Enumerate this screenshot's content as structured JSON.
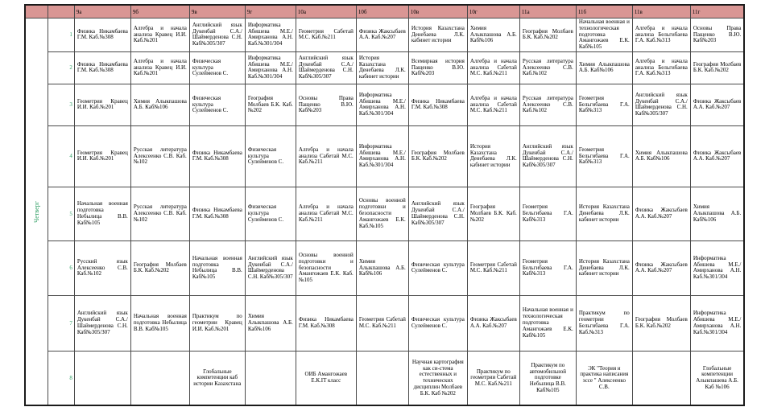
{
  "colors": {
    "header_bg": "#d99694",
    "accent_green": "#2f9e64",
    "border": "#4a4a4a",
    "background": "#ffffff"
  },
  "day_label": "Четверг",
  "columns": [
    "9а",
    "9б",
    "9в",
    "9г",
    "10а",
    "10б",
    "10в",
    "10г",
    "11а",
    "11б",
    "11в",
    "11г"
  ],
  "rows": [
    {
      "num": "1",
      "cells": [
        "Физика Никамбаева Г.М. Каб.№308",
        "Алгебра и начала анализа Кравец И.И. Каб.№201",
        "Английский язык Дукенбай С.А./ Шаймерденова С.Н. Каб№305/307",
        "Информатика Абишева М.Е./ Амирханова А.Н. Каб.№301/304",
        "Геометрия Сабетай М.С. Каб.№211",
        "Физика Жаксыбаев А.А. Каб.№207",
        "История Казахстана Денебаева Л.К. кабинет истории",
        "Химия Алыкпашова А.Б. Каб№106",
        "География Молбаев Б.К. Каб.№202",
        "Начальная военная и технологическая подготовка Амангожаев Е.К. Каб№105",
        "Алгебра и начала анализа Бельгибаева Г.А. Каб.№313",
        "Основы Права Пащенко В.Ю. Каб№203"
      ]
    },
    {
      "num": "2",
      "cells": [
        "Физика Никамбаева Г.М. Каб.№308",
        "Алгебра и начала анализа Кравец И.И. Каб.№201",
        "Физическая культура Сулейменов С.",
        "Информатика Абишева М.Е./ Амирханова А.Н. Каб.№301/304",
        "Английский язык Дукенбай С.А./ Шаймерденова С.Н. Каб№305/307",
        "История Казахстана Денебаева Л.К. кабинет истории",
        "Всемирная история Пащенко В.Ю. Каб№203",
        "Алгебра и начала анализа Сабетай М.С. Каб.№211",
        "Русская литература Алексеенко С.В. Каб.№102",
        "Химия Алыкпашова А.Б. Каб№106",
        "Алгебра и начала анализа Бельгибаева Г.А. Каб.№313",
        "География Молбаев Б.К. Каб.№202"
      ]
    },
    {
      "num": "3",
      "cells": [
        "Геометрия Кравец И.И. Каб.№201",
        "Химия Алыкпашова А.Б. Каб№106",
        "Физическая культура Сулейменов С.",
        "География Молбаев Б.К. Каб.№202",
        "Основы Права Пащенко В.Ю. Каб№203",
        "Информатика Абишева М.Е./ Амирханова А.Н. Каб.№301/304",
        "Физика Никамбаева Г.М. Каб.№308",
        "Алгебра и начала анализа Сабетай М.С. Каб.№211",
        "Русская литература Алексеенко С.В. Каб.№102",
        "Геометрия Бельгибаева Г.А. Каб№313",
        "Английский язык Дукенбай С.А./ Шаймерденова С.Н. Каб№305/307",
        "Физика Жаксыбаев А.А. Каб.№207"
      ]
    },
    {
      "num": "4",
      "cells": [
        "Геометрия Кравец И.И. Каб.№201",
        "Русская литература Алексеенко С.В. Каб.№102",
        "Физика Никамбаева Г.М. Каб.№308",
        "Физическая культура Сулейменов С.",
        "Алгебра и начала анализа Сабетай М.С. Каб.№211",
        "Информатика Абишева М.Е./ Амирханова А.Н. Каб.№301/304",
        "География Молбаев Б.К. Каб.№202",
        "История Казахстана Денебаева Л.К. кабинет истории",
        "Английский язык Дукенбай С.А./ Шаймерденова С.Н. Каб№305/307",
        "Геометрия Бельгибаева Г.А. Каб№313",
        "Химия Алыкпашова А.Б. Каб№106",
        "Физика Жаксыбаев А.А. Каб.№207"
      ]
    },
    {
      "num": "5",
      "cells": [
        "Начальная военная подготовка Небылица В.В. Каб№105",
        "Русская литература Алексеенко С.В. Каб.№102",
        "Физика Никамбаева Г.М. Каб.№308",
        "Физическая культура Сулейменов С.",
        "Алгебра и начала анализа Сабетай М.С. Каб.№211",
        "Основы военной подготовки и безопасности Амангожаев Е.К. Каб.№105",
        "Английский язык Дукенбай С.А./ Шаймерденова С.Н. Каб№305/307",
        "География Молбаев Б.К. Каб.№202",
        "Геометрия Бельгибаева Г.А. Каб№313",
        "История Казахстана Денебаева Л.К. кабинет истории",
        "Физика Жаксыбаев А.А. Каб.№207",
        "Химия Алыкпашова А.Б. Каб№106"
      ]
    },
    {
      "num": "6",
      "cells": [
        "Русский язык Алексеенко С.В. Каб.№102",
        "География Молбаев Б.К. Каб.№202",
        "Начальная военная подготовка Небылица В.В. Каб№105",
        "Английский язык Дукенбай С.А./ Шаймерденова С.Н. Каб№305/307",
        "Основы военной подготовки и безопасности Амангожаев Е.К. Каб.№105",
        "Химия Алыкпашова А.Б. Каб№106",
        "Физическая культура Сулейменов С.",
        "Геометрия Сабетай М.С. Каб.№211",
        "Геометрия Бельгибаева Г.А. Каб№313",
        "История Казахстана Денебаева Л.К. кабинет истории",
        "Физика Жаксыбаев А.А. Каб.№207",
        "Информатика Абишева М.Е./ Амирханова А.Н. Каб.№301/304"
      ]
    },
    {
      "num": "7",
      "cells": [
        "Английский язык Дукенбай С.А./ Шаймерденова С.Н. Каб№305/307",
        "Начальная военная подготовка Небылица В.В. Каб№105",
        "Практикум по геометрии Кравец И.И. Каб.№201",
        "Химия Алыкпашова А.Б. Каб№106",
        "Физика Никамбаева Г.М. Каб.№308",
        "Геометрия Сабетай М.С. Каб.№211",
        "Физическая культура Сулейменов С.",
        "Физика Жаксыбаев А.А. Каб.№207",
        "Начальная военная и технологическая подготовка Амангожаев Е.К. Каб№105",
        "Практикум по геометрии Бельгибаева Г.А. Каб.№313",
        "География Молбаев Б.К. Каб.№202",
        "Информатика Абишева М.Е./ Амирханова А.Н. Каб.№301/304"
      ]
    },
    {
      "num": "8",
      "cells": [
        "",
        "",
        "Глобальные компетенции каб истории Казахстана",
        "",
        "ОИБ Амангожаев Е.К.IT класс",
        "",
        "Научная картография как си-стема естественных и технических дисциплин Молбаев Б.К. Каб №202",
        "Практикум по геометрии Сабетай М.С. Каб.№211",
        "Практикум по автомобильной подготовке Небылица В.В. Каб№105",
        "ЭК \"Теория и практика написания эссе \" Алексеенко С.В.",
        "",
        "Глобальные компетенции Алыкпашева А.Б. Каб №106"
      ]
    }
  ]
}
